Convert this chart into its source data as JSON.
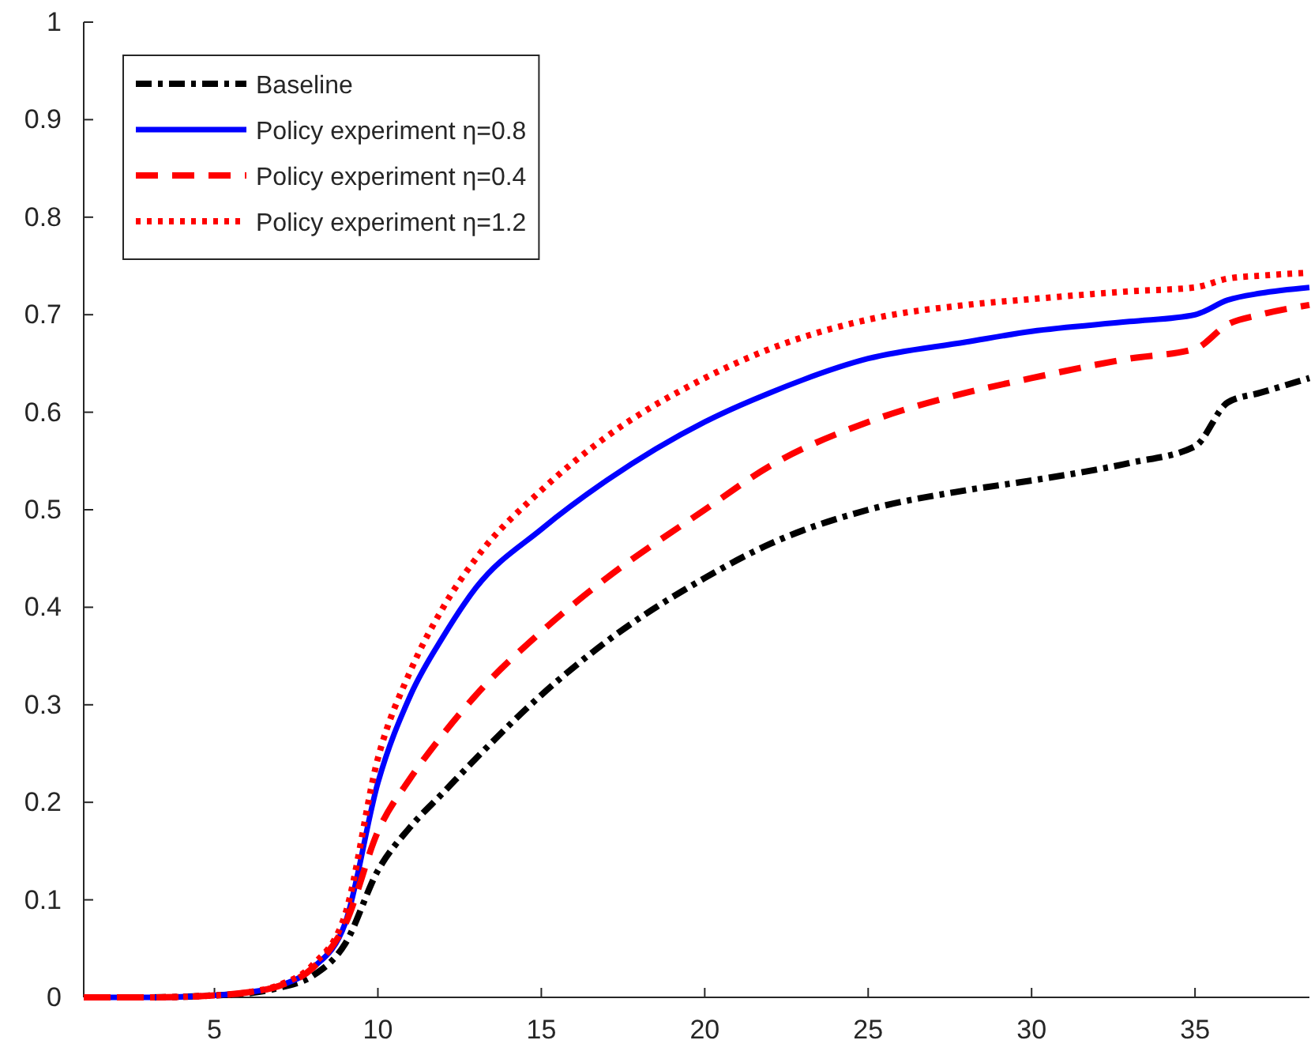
{
  "chart_data": {
    "type": "line",
    "x": [
      1,
      3,
      5,
      6,
      7,
      8,
      9,
      10,
      11,
      12,
      13,
      15,
      17,
      20,
      22,
      25,
      28,
      30,
      33,
      35,
      36,
      37,
      38.5
    ],
    "series": [
      {
        "name": "Baseline",
        "color": "#000000",
        "line_style": "dashdot",
        "values": [
          0,
          0,
          0.002,
          0.004,
          0.01,
          0.022,
          0.055,
          0.13,
          0.175,
          0.21,
          0.245,
          0.31,
          0.365,
          0.43,
          0.465,
          0.5,
          0.52,
          0.53,
          0.548,
          0.565,
          0.61,
          0.62,
          0.635
        ]
      },
      {
        "name": "Policy experiment η=0.8",
        "color": "#0000ff",
        "line_style": "solid",
        "values": [
          0,
          0,
          0.002,
          0.005,
          0.012,
          0.03,
          0.076,
          0.22,
          0.31,
          0.37,
          0.42,
          0.48,
          0.53,
          0.59,
          0.62,
          0.655,
          0.672,
          0.683,
          0.693,
          0.7,
          0.715,
          0.722,
          0.728
        ]
      },
      {
        "name": "Policy experiment η=0.4",
        "color": "#ff0000",
        "line_style": "dashed",
        "values": [
          0,
          0,
          0.002,
          0.005,
          0.012,
          0.03,
          0.075,
          0.17,
          0.225,
          0.27,
          0.31,
          0.375,
          0.43,
          0.5,
          0.545,
          0.59,
          0.62,
          0.635,
          0.655,
          0.665,
          0.69,
          0.7,
          0.71
        ]
      },
      {
        "name": "Policy experiment η=1.2",
        "color": "#ff0000",
        "line_style": "dotted",
        "values": [
          0,
          0,
          0.002,
          0.005,
          0.013,
          0.033,
          0.085,
          0.245,
          0.335,
          0.4,
          0.45,
          0.52,
          0.575,
          0.635,
          0.665,
          0.695,
          0.71,
          0.716,
          0.724,
          0.728,
          0.737,
          0.74,
          0.743
        ]
      }
    ],
    "xlim": [
      1,
      38.5
    ],
    "xticks": [
      5,
      10,
      15,
      20,
      25,
      30,
      35
    ],
    "ylim": [
      0,
      1
    ],
    "yticks": [
      0,
      0.1,
      0.2,
      0.3,
      0.4,
      0.5,
      0.6,
      0.7,
      0.8,
      0.9,
      1
    ],
    "legend": "top left",
    "grid": false,
    "marker": "none"
  }
}
